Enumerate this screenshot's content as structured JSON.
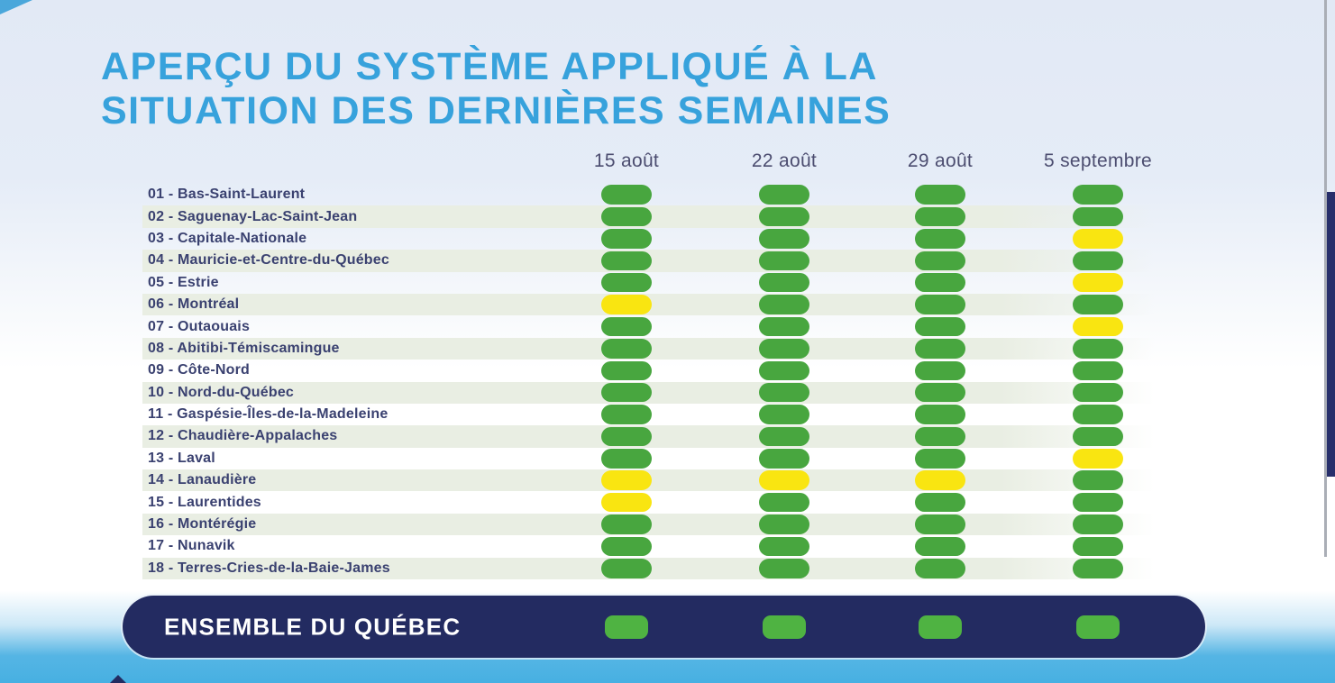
{
  "title": {
    "line1": "APERÇU DU SYSTÈME APPLIQUÉ À LA",
    "line2": "SITUATION DES DERNIÈRES SEMAINES"
  },
  "colors": {
    "vert": "#48a63f",
    "jaune": "#f9e511",
    "summary_vert": "#4fb342",
    "navy_bar": "#232b61",
    "title_blue": "#37a2dc",
    "band": "#e9eee3",
    "date_header": "#4c4d70",
    "region_label": "#3a4170"
  },
  "chart_data": {
    "type": "heatmap",
    "title": "Aperçu du système appliqué à la situation des dernières semaines",
    "columns": [
      "15 août",
      "22 août",
      "29 août",
      "5 septembre"
    ],
    "legend": {
      "vert": "#48a63f",
      "jaune": "#f9e511"
    },
    "legend_position": "none",
    "rows": [
      {
        "label": "01 - Bas-Saint-Laurent",
        "levels": [
          "vert",
          "vert",
          "vert",
          "vert"
        ]
      },
      {
        "label": "02 - Saguenay-Lac-Saint-Jean",
        "levels": [
          "vert",
          "vert",
          "vert",
          "vert"
        ]
      },
      {
        "label": "03 - Capitale-Nationale",
        "levels": [
          "vert",
          "vert",
          "vert",
          "jaune"
        ]
      },
      {
        "label": "04 - Mauricie-et-Centre-du-Québec",
        "levels": [
          "vert",
          "vert",
          "vert",
          "vert"
        ]
      },
      {
        "label": "05 - Estrie",
        "levels": [
          "vert",
          "vert",
          "vert",
          "jaune"
        ]
      },
      {
        "label": "06 - Montréal",
        "levels": [
          "jaune",
          "vert",
          "vert",
          "vert"
        ]
      },
      {
        "label": "07 - Outaouais",
        "levels": [
          "vert",
          "vert",
          "vert",
          "jaune"
        ]
      },
      {
        "label": "08 - Abitibi-Témiscamingue",
        "levels": [
          "vert",
          "vert",
          "vert",
          "vert"
        ]
      },
      {
        "label": "09 - Côte-Nord",
        "levels": [
          "vert",
          "vert",
          "vert",
          "vert"
        ]
      },
      {
        "label": "10 - Nord-du-Québec",
        "levels": [
          "vert",
          "vert",
          "vert",
          "vert"
        ]
      },
      {
        "label": "11 - Gaspésie-Îles-de-la-Madeleine",
        "levels": [
          "vert",
          "vert",
          "vert",
          "vert"
        ]
      },
      {
        "label": "12 - Chaudière-Appalaches",
        "levels": [
          "vert",
          "vert",
          "vert",
          "vert"
        ]
      },
      {
        "label": "13 - Laval",
        "levels": [
          "vert",
          "vert",
          "vert",
          "jaune"
        ]
      },
      {
        "label": "14 - Lanaudière",
        "levels": [
          "jaune",
          "jaune",
          "jaune",
          "vert"
        ]
      },
      {
        "label": "15 - Laurentides",
        "levels": [
          "jaune",
          "vert",
          "vert",
          "vert"
        ]
      },
      {
        "label": "16 - Montérégie",
        "levels": [
          "vert",
          "vert",
          "vert",
          "vert"
        ]
      },
      {
        "label": "17 - Nunavik",
        "levels": [
          "vert",
          "vert",
          "vert",
          "vert"
        ]
      },
      {
        "label": "18 - Terres-Cries-de-la-Baie-James",
        "levels": [
          "vert",
          "vert",
          "vert",
          "vert"
        ]
      }
    ],
    "summary_row": {
      "label": "ENSEMBLE DU QUÉBEC",
      "levels": [
        "vert",
        "vert",
        "vert",
        "vert"
      ]
    }
  }
}
